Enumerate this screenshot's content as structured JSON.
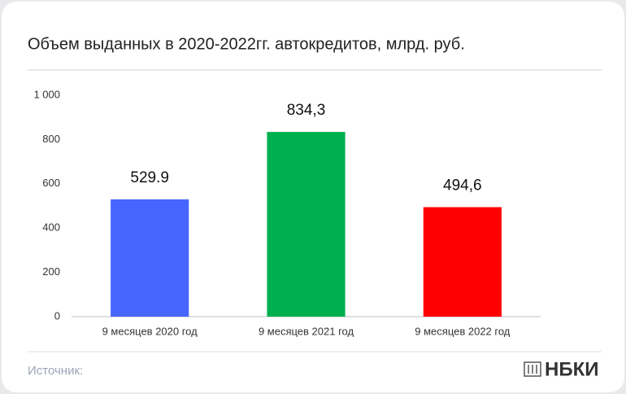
{
  "chart_data": {
    "type": "bar",
    "title": "Объем выданных в 2020-2022гг. автокредитов, млрд. руб.",
    "categories": [
      "9 месяцев 2020 год",
      "9 месяцев 2021 год",
      "9 месяцев 2022 год"
    ],
    "values": [
      529.9,
      834.3,
      494.6
    ],
    "value_labels": [
      "529.9",
      "834,3",
      "494,6"
    ],
    "colors": [
      "#4766ff",
      "#00b050",
      "#ff0000"
    ],
    "ylim": [
      0,
      1000
    ],
    "yticks": [
      0,
      200,
      400,
      600,
      800,
      {
        "value": 1000,
        "label": "1 000"
      }
    ],
    "grid": false,
    "source_label": "Источник:",
    "brand": "НБКИ"
  }
}
